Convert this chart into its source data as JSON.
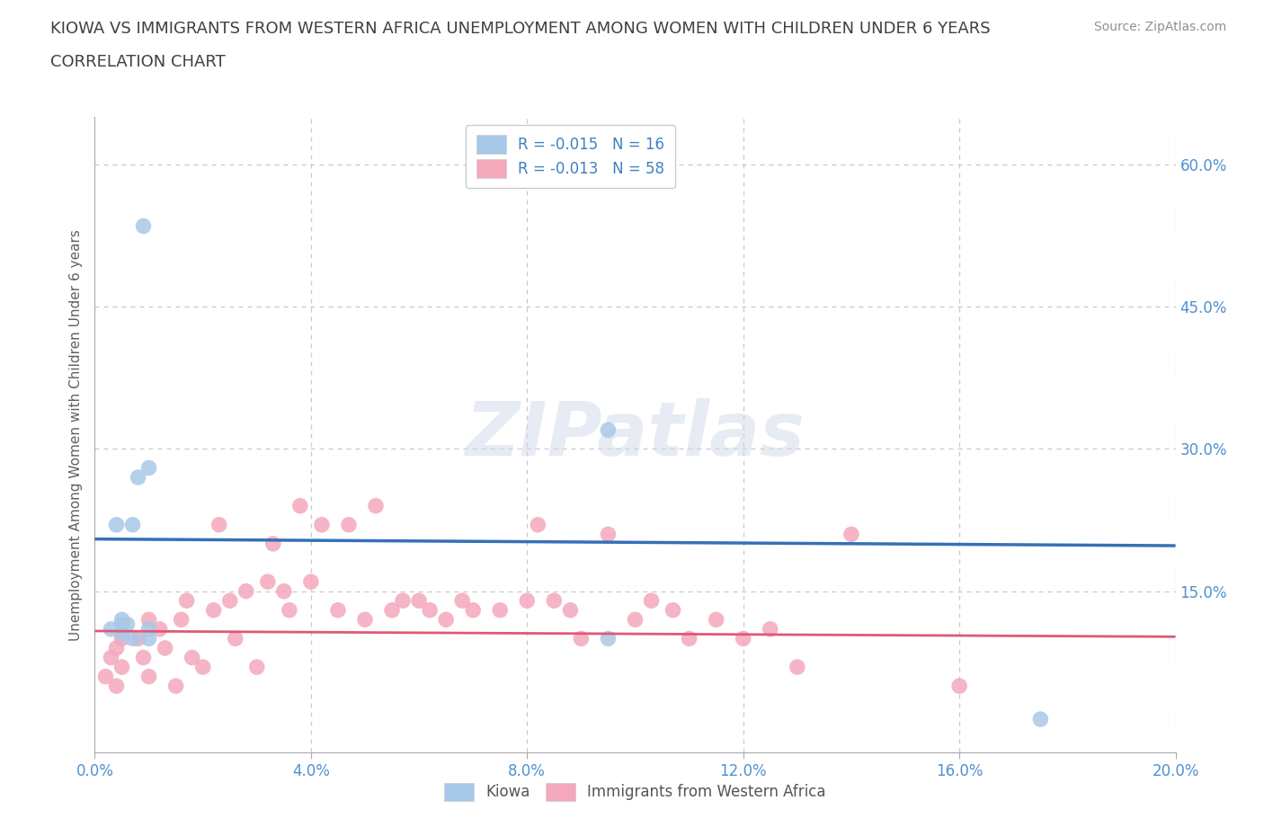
{
  "title_line1": "KIOWA VS IMMIGRANTS FROM WESTERN AFRICA UNEMPLOYMENT AMONG WOMEN WITH CHILDREN UNDER 6 YEARS",
  "title_line2": "CORRELATION CHART",
  "source": "Source: ZipAtlas.com",
  "ylabel": "Unemployment Among Women with Children Under 6 years",
  "xlim": [
    0.0,
    0.2
  ],
  "ylim": [
    -0.02,
    0.65
  ],
  "xticks": [
    0.0,
    0.04,
    0.08,
    0.12,
    0.16,
    0.2
  ],
  "yticks": [
    0.15,
    0.3,
    0.45,
    0.6
  ],
  "ytick_labels": [
    "15.0%",
    "30.0%",
    "45.0%",
    "60.0%"
  ],
  "xtick_labels": [
    "0.0%",
    "4.0%",
    "8.0%",
    "12.0%",
    "16.0%",
    "20.0%"
  ],
  "kiowa_R": -0.015,
  "kiowa_N": 16,
  "immigrants_R": -0.013,
  "immigrants_N": 58,
  "kiowa_color": "#a8c8e8",
  "immigrants_color": "#f4a8bc",
  "kiowa_line_color": "#3570b8",
  "immigrants_line_color": "#e05878",
  "background_color": "#ffffff",
  "grid_color": "#c8c8c8",
  "watermark": "ZIPatlas",
  "kiowa_trend_x": [
    0.0,
    0.2
  ],
  "kiowa_trend_y": [
    0.205,
    0.198
  ],
  "immigrants_trend_x": [
    0.0,
    0.2
  ],
  "immigrants_trend_y": [
    0.108,
    0.102
  ],
  "kiowa_x": [
    0.003,
    0.004,
    0.005,
    0.005,
    0.005,
    0.006,
    0.007,
    0.007,
    0.008,
    0.009,
    0.01,
    0.01,
    0.01,
    0.095,
    0.095,
    0.175
  ],
  "kiowa_y": [
    0.11,
    0.22,
    0.105,
    0.12,
    0.115,
    0.115,
    0.1,
    0.22,
    0.27,
    0.535,
    0.1,
    0.11,
    0.28,
    0.32,
    0.1,
    0.015
  ],
  "immigrants_x": [
    0.002,
    0.003,
    0.004,
    0.004,
    0.005,
    0.005,
    0.008,
    0.009,
    0.01,
    0.01,
    0.012,
    0.013,
    0.015,
    0.016,
    0.017,
    0.018,
    0.02,
    0.022,
    0.023,
    0.025,
    0.026,
    0.028,
    0.03,
    0.032,
    0.033,
    0.035,
    0.036,
    0.038,
    0.04,
    0.042,
    0.045,
    0.047,
    0.05,
    0.052,
    0.055,
    0.057,
    0.06,
    0.062,
    0.065,
    0.068,
    0.07,
    0.075,
    0.08,
    0.082,
    0.085,
    0.088,
    0.09,
    0.095,
    0.1,
    0.103,
    0.107,
    0.11,
    0.115,
    0.12,
    0.125,
    0.13,
    0.14,
    0.16
  ],
  "immigrants_y": [
    0.06,
    0.08,
    0.09,
    0.05,
    0.1,
    0.07,
    0.1,
    0.08,
    0.06,
    0.12,
    0.11,
    0.09,
    0.05,
    0.12,
    0.14,
    0.08,
    0.07,
    0.13,
    0.22,
    0.14,
    0.1,
    0.15,
    0.07,
    0.16,
    0.2,
    0.15,
    0.13,
    0.24,
    0.16,
    0.22,
    0.13,
    0.22,
    0.12,
    0.24,
    0.13,
    0.14,
    0.14,
    0.13,
    0.12,
    0.14,
    0.13,
    0.13,
    0.14,
    0.22,
    0.14,
    0.13,
    0.1,
    0.21,
    0.12,
    0.14,
    0.13,
    0.1,
    0.12,
    0.1,
    0.11,
    0.07,
    0.21,
    0.05
  ],
  "title_fontsize": 13,
  "tick_fontsize": 12,
  "label_fontsize": 11,
  "tick_color": "#5090d0",
  "title_color": "#404040",
  "ylabel_color": "#606060",
  "source_color": "#909090",
  "legend_text_color": "#4080c0"
}
